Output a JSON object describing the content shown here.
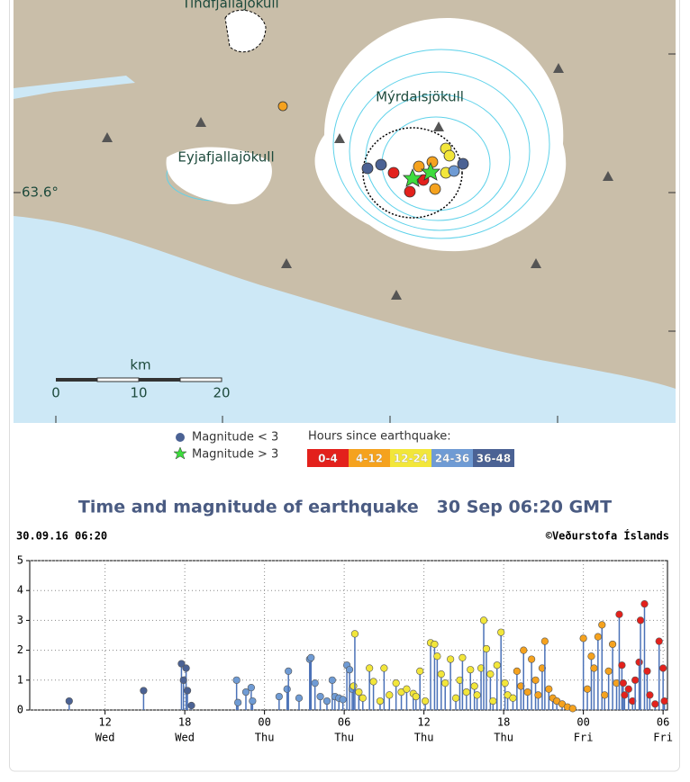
{
  "map": {
    "labels": {
      "glacier_1": "Mýrdalsjökull",
      "glacier_2": "Eyjafjallajökull",
      "glacier_3": "Tindfjallajökull",
      "latitude": "63.6°"
    },
    "scale": {
      "unit": "km",
      "ticks": [
        "0",
        "10",
        "20"
      ]
    }
  },
  "legend": {
    "small": "Magnitude < 3",
    "large": "Magnitude > 3",
    "hours_title": "Hours since earthquake:"
  },
  "title": "Time and magnitude of earthquake   30 Sep 06:20 GMT",
  "chart_data": {
    "type": "stem",
    "header_left": "30.09.16 06:20",
    "header_right": "©Veðurstofa Íslands",
    "xlim": [
      6.33,
      54.33
    ],
    "ylim": [
      0,
      5
    ],
    "yticks": [
      0,
      1,
      2,
      3,
      4,
      5
    ],
    "grid": true,
    "stem_color": "#4b72b8",
    "xticks": [
      {
        "value": 12,
        "label": "12"
      },
      {
        "value": 18,
        "label": "18"
      },
      {
        "value": 24,
        "label": "00"
      },
      {
        "value": 30,
        "label": "06"
      },
      {
        "value": 36,
        "label": "12"
      },
      {
        "value": 42,
        "label": "18"
      },
      {
        "value": 48,
        "label": "00"
      },
      {
        "value": 54,
        "label": "06"
      }
    ],
    "xtick_days": [
      "Wed",
      "Wed",
      "Thu",
      "Thu",
      "Thu",
      "Thu",
      "Fri",
      "Fri"
    ],
    "series": [
      {
        "name": "0-4",
        "color": "#e3211c",
        "x": [
          50.7,
          50.9,
          51.0,
          51.1,
          51.4,
          51.7,
          51.9,
          52.2,
          52.3,
          52.6,
          52.8,
          53.0,
          53.4,
          53.7,
          54.0,
          54.1
        ],
        "values": [
          3.2,
          1.5,
          0.9,
          0.5,
          0.7,
          0.3,
          1.0,
          1.6,
          3.0,
          3.55,
          1.3,
          0.5,
          0.2,
          2.3,
          1.4,
          0.3
        ]
      },
      {
        "name": "4-12",
        "color": "#f5a21e",
        "x": [
          43.0,
          43.3,
          43.5,
          43.8,
          44.1,
          44.4,
          44.6,
          44.9,
          45.1,
          45.4,
          45.7,
          46.0,
          46.4,
          46.8,
          47.2,
          48.0,
          48.3,
          48.6,
          48.8,
          49.1,
          49.4,
          49.6,
          49.9,
          50.2,
          50.5
        ],
        "values": [
          1.3,
          0.8,
          2.0,
          0.6,
          1.7,
          1.0,
          0.5,
          1.4,
          2.3,
          0.7,
          0.4,
          0.3,
          0.2,
          0.1,
          0.05,
          2.4,
          0.7,
          1.8,
          1.4,
          2.45,
          2.85,
          0.5,
          1.3,
          2.2,
          0.9
        ]
      },
      {
        "name": "12-24",
        "color": "#f2e63a",
        "x": [
          30.7,
          30.8,
          31.1,
          31.4,
          31.9,
          32.2,
          32.7,
          33.0,
          33.4,
          33.9,
          34.3,
          34.7,
          35.2,
          35.4,
          35.7,
          36.1,
          36.5,
          36.8,
          37.0,
          37.3,
          37.6,
          38.0,
          38.4,
          38.7,
          38.9,
          39.2,
          39.5,
          39.8,
          40.0,
          40.3,
          40.5,
          40.7,
          41.0,
          41.2,
          41.5,
          41.8,
          42.1,
          42.3,
          42.7
        ],
        "values": [
          0.8,
          2.55,
          0.6,
          0.4,
          1.4,
          0.95,
          0.3,
          1.4,
          0.5,
          0.9,
          0.6,
          0.7,
          0.55,
          0.45,
          1.3,
          0.3,
          2.25,
          2.2,
          1.8,
          1.2,
          0.9,
          1.7,
          0.4,
          1.0,
          1.75,
          0.6,
          1.35,
          0.8,
          0.5,
          1.4,
          3.0,
          2.05,
          1.2,
          0.3,
          1.5,
          2.6,
          0.9,
          0.5,
          0.4
        ]
      },
      {
        "name": "24-36",
        "color": "#6f9bd4",
        "x": [
          21.9,
          22.0,
          22.6,
          23.0,
          23.1,
          25.1,
          25.7,
          25.8,
          26.6,
          27.4,
          27.5,
          27.8,
          28.2,
          28.7,
          29.1,
          29.3,
          29.6,
          29.9,
          30.2,
          30.4,
          30.6
        ],
        "values": [
          1.0,
          0.25,
          0.6,
          0.75,
          0.3,
          0.45,
          0.7,
          1.3,
          0.4,
          1.7,
          1.75,
          0.9,
          0.45,
          0.3,
          1.0,
          0.45,
          0.4,
          0.35,
          1.5,
          1.35,
          0.7
        ]
      },
      {
        "name": "36-48",
        "color": "#4b6294",
        "x": [
          9.3,
          14.9,
          17.75,
          18.1,
          17.9,
          18.2,
          18.5
        ],
        "values": [
          0.3,
          0.65,
          1.55,
          1.4,
          1.0,
          0.65,
          0.15
        ]
      }
    ]
  }
}
